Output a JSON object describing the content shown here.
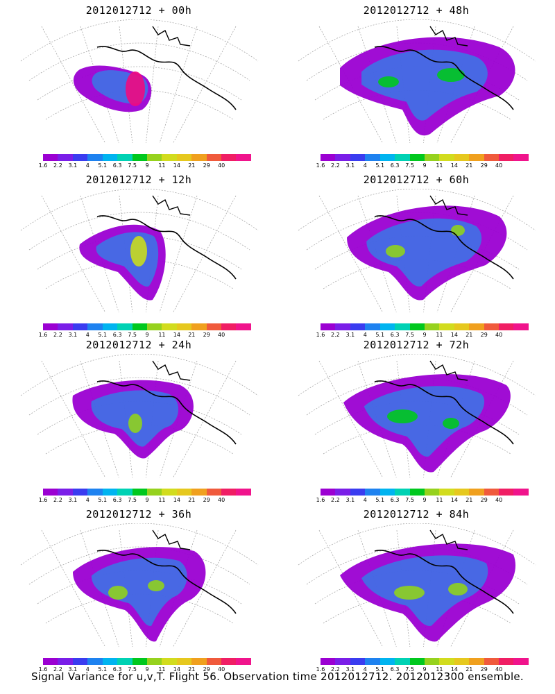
{
  "chart_data": [
    {
      "type": "contour-map",
      "title": "2012012712 + 00h",
      "forecast_hour": 0,
      "max_level": "40",
      "core_color": "#ef0a7f"
    },
    {
      "type": "contour-map",
      "title": "2012012712 + 48h",
      "forecast_hour": 48,
      "max_level": "7.5",
      "core_color": "#00c81e"
    },
    {
      "type": "contour-map",
      "title": "2012012712 + 12h",
      "forecast_hour": 12,
      "max_level": "11",
      "core_color": "#c8dc1e"
    },
    {
      "type": "contour-map",
      "title": "2012012712 + 60h",
      "forecast_hour": 60,
      "max_level": "9",
      "core_color": "#8fd21e"
    },
    {
      "type": "contour-map",
      "title": "2012012712 + 24h",
      "forecast_hour": 24,
      "max_level": "9",
      "core_color": "#8fd21e"
    },
    {
      "type": "contour-map",
      "title": "2012012712 + 72h",
      "forecast_hour": 72,
      "max_level": "7.5",
      "core_color": "#00c81e"
    },
    {
      "type": "contour-map",
      "title": "2012012712 + 36h",
      "forecast_hour": 36,
      "max_level": "9",
      "core_color": "#8fd21e"
    },
    {
      "type": "contour-map",
      "title": "2012012712 + 84h",
      "forecast_hour": 84,
      "max_level": "9",
      "core_color": "#8fd21e"
    }
  ],
  "colorbar": {
    "levels": [
      "1.6",
      "2.2",
      "3.1",
      "4",
      "5.1",
      "6.3",
      "7.5",
      "9",
      "11",
      "14",
      "21",
      "29",
      "40"
    ],
    "colors": [
      "#9b00d2",
      "#7a1ee8",
      "#3a3cf0",
      "#1e82f0",
      "#00b4f0",
      "#00d2b4",
      "#00c81e",
      "#96d21e",
      "#d2dc1e",
      "#e6c81e",
      "#f0a01e",
      "#f05a3c",
      "#f01e64",
      "#f0148c"
    ]
  },
  "caption": "Signal Variance for u,v,T. Flight 56. Observation time 2012012712. 2012012300 ensemble."
}
